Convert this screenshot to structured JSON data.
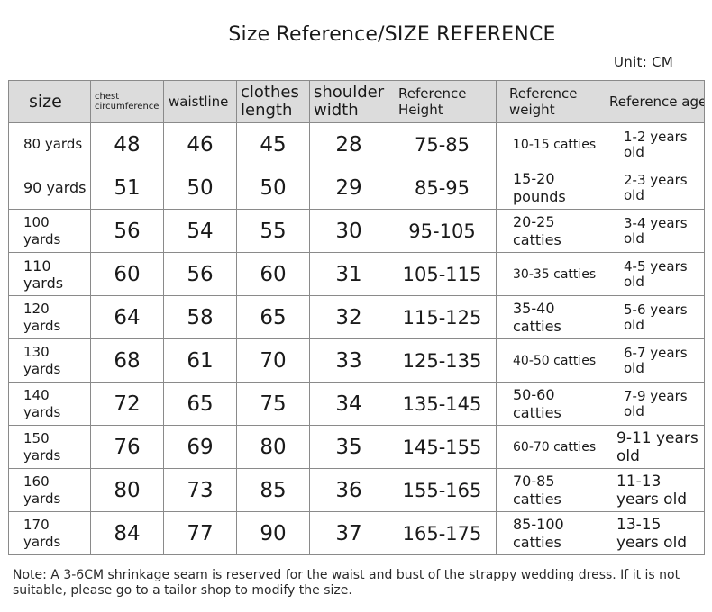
{
  "title": "Size Reference/SIZE REFERENCE",
  "unit": "Unit: CM",
  "headers": {
    "size": "size",
    "chest": "chest circumference",
    "waistline": "waistline",
    "clothes_length": "clothes length",
    "shoulder_width": "shoulder width",
    "ref_height": "Reference Height",
    "ref_weight": "Reference weight",
    "ref_age": "Reference age"
  },
  "rows": [
    {
      "size": "80 yards",
      "chest": "48",
      "waist": "46",
      "length": "45",
      "shoulder": "28",
      "height": "75-85",
      "weight": "10-15 catties",
      "age": "1-2 years old"
    },
    {
      "size": "90 yards",
      "chest": "51",
      "waist": "50",
      "length": "50",
      "shoulder": "29",
      "height": "85-95",
      "weight": "15-20 pounds",
      "age": "2-3 years old"
    },
    {
      "size": "100 yards",
      "chest": "56",
      "waist": "54",
      "length": "55",
      "shoulder": "30",
      "height": "95-105",
      "weight": "20-25 catties",
      "age": "3-4 years old"
    },
    {
      "size": "110 yards",
      "chest": "60",
      "waist": "56",
      "length": "60",
      "shoulder": "31",
      "height": "105-115",
      "weight": "30-35 catties",
      "age": "4-5 years old"
    },
    {
      "size": "120 yards",
      "chest": "64",
      "waist": "58",
      "length": "65",
      "shoulder": "32",
      "height": "115-125",
      "weight": "35-40 catties",
      "age": "5-6 years old"
    },
    {
      "size": "130 yards",
      "chest": "68",
      "waist": "61",
      "length": "70",
      "shoulder": "33",
      "height": "125-135",
      "weight": "40-50 catties",
      "age": "6-7 years old"
    },
    {
      "size": "140 yards",
      "chest": "72",
      "waist": "65",
      "length": "75",
      "shoulder": "34",
      "height": "135-145",
      "weight": "50-60 catties",
      "age": "7-9 years old"
    },
    {
      "size": "150 yards",
      "chest": "76",
      "waist": "69",
      "length": "80",
      "shoulder": "35",
      "height": "145-155",
      "weight": "60-70 catties",
      "age": "9-11 years old"
    },
    {
      "size": "160 yards",
      "chest": "80",
      "waist": "73",
      "length": "85",
      "shoulder": "36",
      "height": "155-165",
      "weight": "70-85 catties",
      "age": "11-13 years old"
    },
    {
      "size": "170 yards",
      "chest": "84",
      "waist": "77",
      "length": "90",
      "shoulder": "37",
      "height": "165-175",
      "weight": "85-100 catties",
      "age": "13-15 years old"
    }
  ],
  "note": "Note: A 3-6CM shrinkage seam is reserved for the waist and bust of the strappy wedding dress. If it is not suitable, please go to a tailor shop to modify the size."
}
